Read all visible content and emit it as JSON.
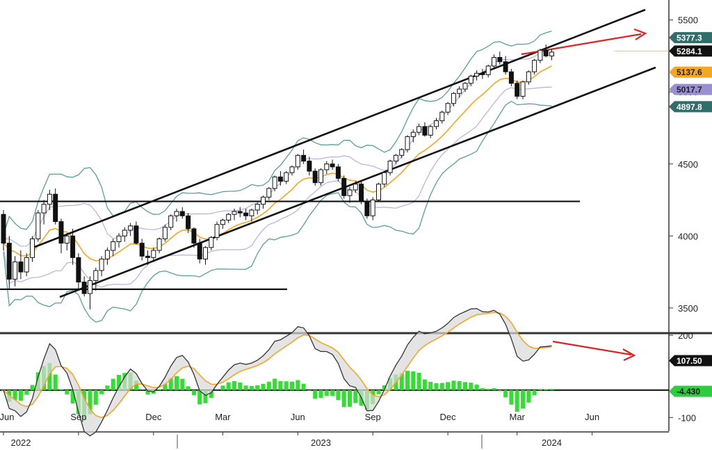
{
  "chart_data": [
    {
      "type": "candlestick",
      "title": "",
      "ylim": [
        3330,
        5600
      ],
      "yticks": [
        3500,
        4000,
        4500,
        5000,
        5500
      ],
      "x_labels": [
        {
          "i": 0,
          "label": "Jun"
        },
        {
          "i": 13,
          "label": "Sep"
        },
        {
          "i": 26,
          "label": "Dec"
        },
        {
          "i": 38,
          "label": "Mar"
        },
        {
          "i": 51,
          "label": "Jun"
        },
        {
          "i": 64,
          "label": "Sep"
        },
        {
          "i": 77,
          "label": "Dec"
        },
        {
          "i": 89,
          "label": "Mar"
        },
        {
          "i": 102,
          "label": "Jun"
        }
      ],
      "years": [
        {
          "i": 3,
          "label": "2022"
        },
        {
          "i": 55,
          "label": "2023"
        },
        {
          "i": 95,
          "label": "2024"
        }
      ],
      "value_tags": [
        {
          "value": "5377.3",
          "level": 5377.3,
          "bg": "#2f6e6a",
          "fg": "#ffffff"
        },
        {
          "value": "5284.1",
          "level": 5284.1,
          "bg": "#111111",
          "fg": "#ffffff"
        },
        {
          "value": "5137.6",
          "level": 5137.6,
          "bg": "#f5a623",
          "fg": "#222222"
        },
        {
          "value": "5017.7",
          "level": 5017.7,
          "bg": "#9b8fd4",
          "fg": "#222222"
        },
        {
          "value": "4897.8",
          "level": 4897.8,
          "bg": "#2f6e6a",
          "fg": "#ffffff"
        }
      ],
      "candles": [
        [
          4150,
          4180,
          3900,
          3950
        ],
        [
          3950,
          4000,
          3630,
          3700
        ],
        [
          3700,
          3860,
          3650,
          3820
        ],
        [
          3820,
          3900,
          3700,
          3750
        ],
        [
          3750,
          3880,
          3720,
          3850
        ],
        [
          3850,
          4000,
          3820,
          3980
        ],
        [
          3980,
          4180,
          3960,
          4160
        ],
        [
          4160,
          4250,
          4080,
          4220
        ],
        [
          4220,
          4320,
          4180,
          4290
        ],
        [
          4290,
          4330,
          4080,
          4100
        ],
        [
          4100,
          4120,
          3880,
          3950
        ],
        [
          3950,
          4020,
          3900,
          4000
        ],
        [
          4000,
          4050,
          3800,
          3850
        ],
        [
          3850,
          3880,
          3630,
          3680
        ],
        [
          3680,
          3720,
          3580,
          3600
        ],
        [
          3600,
          3720,
          3490,
          3690
        ],
        [
          3690,
          3780,
          3620,
          3760
        ],
        [
          3760,
          3860,
          3720,
          3840
        ],
        [
          3840,
          3920,
          3800,
          3900
        ],
        [
          3900,
          3980,
          3860,
          3960
        ],
        [
          3960,
          4020,
          3920,
          4000
        ],
        [
          4000,
          4060,
          3960,
          4040
        ],
        [
          4040,
          4090,
          4000,
          4070
        ],
        [
          4070,
          4100,
          3940,
          3950
        ],
        [
          3950,
          3980,
          3830,
          3860
        ],
        [
          3860,
          3900,
          3800,
          3850
        ],
        [
          3850,
          3920,
          3820,
          3900
        ],
        [
          3900,
          3990,
          3880,
          3980
        ],
        [
          3980,
          4080,
          3960,
          4060
        ],
        [
          4060,
          4150,
          4040,
          4140
        ],
        [
          4140,
          4190,
          4100,
          4170
        ],
        [
          4170,
          4200,
          4120,
          4140
        ],
        [
          4140,
          4160,
          4020,
          4050
        ],
        [
          4050,
          4060,
          3920,
          3950
        ],
        [
          3950,
          3980,
          3810,
          3840
        ],
        [
          3840,
          3930,
          3800,
          3920
        ],
        [
          3920,
          4000,
          3900,
          3990
        ],
        [
          3990,
          4100,
          3970,
          4080
        ],
        [
          4080,
          4120,
          4050,
          4110
        ],
        [
          4110,
          4160,
          4090,
          4150
        ],
        [
          4150,
          4190,
          4110,
          4170
        ],
        [
          4170,
          4200,
          4130,
          4160
        ],
        [
          4160,
          4190,
          4110,
          4140
        ],
        [
          4140,
          4190,
          4100,
          4180
        ],
        [
          4180,
          4230,
          4150,
          4220
        ],
        [
          4220,
          4280,
          4190,
          4270
        ],
        [
          4270,
          4340,
          4250,
          4330
        ],
        [
          4330,
          4420,
          4310,
          4410
        ],
        [
          4410,
          4450,
          4350,
          4380
        ],
        [
          4380,
          4450,
          4360,
          4440
        ],
        [
          4440,
          4490,
          4420,
          4480
        ],
        [
          4480,
          4570,
          4460,
          4560
        ],
        [
          4560,
          4600,
          4500,
          4520
        ],
        [
          4520,
          4550,
          4420,
          4450
        ],
        [
          4450,
          4470,
          4350,
          4370
        ],
        [
          4370,
          4470,
          4350,
          4460
        ],
        [
          4460,
          4520,
          4430,
          4500
        ],
        [
          4500,
          4530,
          4460,
          4480
        ],
        [
          4480,
          4500,
          4380,
          4400
        ],
        [
          4400,
          4420,
          4260,
          4280
        ],
        [
          4280,
          4340,
          4230,
          4320
        ],
        [
          4320,
          4380,
          4300,
          4360
        ],
        [
          4360,
          4380,
          4220,
          4240
        ],
        [
          4240,
          4260,
          4120,
          4140
        ],
        [
          4140,
          4270,
          4110,
          4250
        ],
        [
          4250,
          4370,
          4240,
          4360
        ],
        [
          4360,
          4450,
          4340,
          4440
        ],
        [
          4440,
          4530,
          4420,
          4520
        ],
        [
          4520,
          4570,
          4500,
          4560
        ],
        [
          4560,
          4610,
          4540,
          4600
        ],
        [
          4600,
          4700,
          4580,
          4690
        ],
        [
          4690,
          4740,
          4650,
          4720
        ],
        [
          4720,
          4780,
          4700,
          4760
        ],
        [
          4760,
          4790,
          4690,
          4700
        ],
        [
          4700,
          4770,
          4680,
          4760
        ],
        [
          4760,
          4820,
          4740,
          4800
        ],
        [
          4800,
          4870,
          4780,
          4860
        ],
        [
          4860,
          4930,
          4840,
          4920
        ],
        [
          4920,
          5000,
          4900,
          4990
        ],
        [
          4990,
          5040,
          4960,
          5020
        ],
        [
          5020,
          5070,
          5000,
          5060
        ],
        [
          5060,
          5120,
          5040,
          5110
        ],
        [
          5110,
          5150,
          5080,
          5130
        ],
        [
          5130,
          5160,
          5090,
          5120
        ],
        [
          5120,
          5190,
          5100,
          5180
        ],
        [
          5180,
          5260,
          5160,
          5240
        ],
        [
          5240,
          5280,
          5190,
          5210
        ],
        [
          5210,
          5250,
          5120,
          5140
        ],
        [
          5140,
          5160,
          5040,
          5060
        ],
        [
          5060,
          5080,
          4950,
          4970
        ],
        [
          4970,
          5080,
          4950,
          5070
        ],
        [
          5070,
          5150,
          5050,
          5140
        ],
        [
          5140,
          5230,
          5120,
          5220
        ],
        [
          5220,
          5300,
          5200,
          5290
        ],
        [
          5290,
          5330,
          5240,
          5250
        ],
        [
          5250,
          5300,
          5220,
          5277
        ]
      ],
      "oscillator": {
        "ylim": [
          -150,
          200
        ],
        "yticks": [
          200,
          -100
        ],
        "value_tags": [
          {
            "value": "107.50",
            "level": 107.5,
            "bg": "#111111",
            "fg": "#ffffff"
          },
          {
            "value": "-4.430",
            "level": -4.43,
            "bg": "#2ecc40",
            "fg": "#111111"
          }
        ],
        "hist_color": "#33dd33",
        "line_color": "#333333",
        "signal_color": "#f5a623"
      }
    }
  ]
}
